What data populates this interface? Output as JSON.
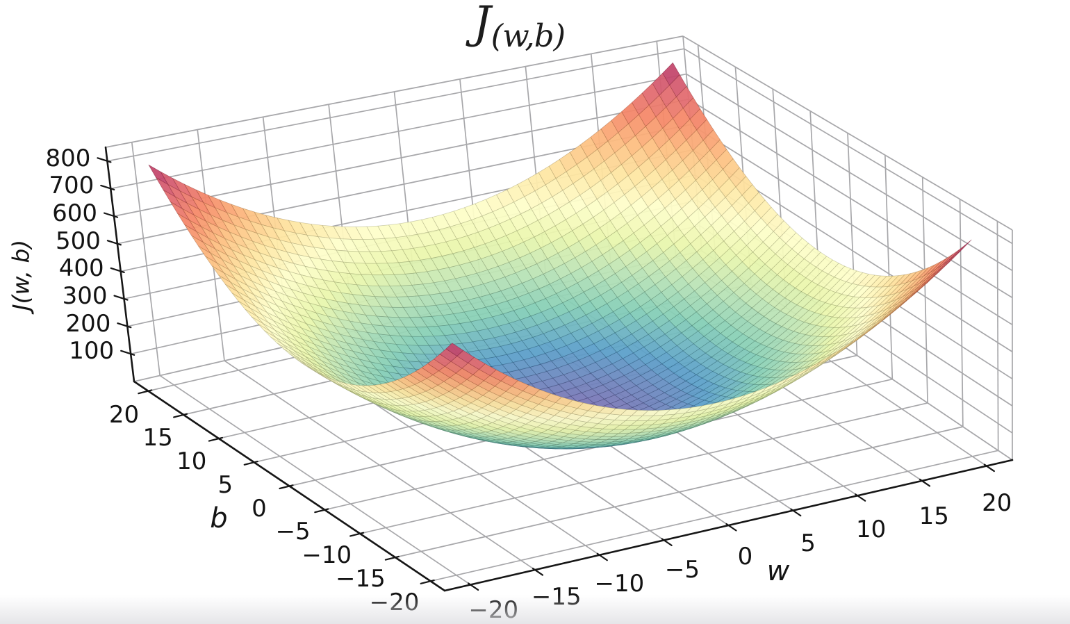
{
  "title": {
    "main": "J",
    "subscript": "(w,b)"
  },
  "chart_data": {
    "type": "surface",
    "description": "3D bowl-shaped cost surface of squared-error cost J over weight w and bias b",
    "expression_js": "w*w + b*b",
    "xlabel": "w",
    "ylabel": "b",
    "zlabel": "J(w, b)",
    "x_range": [
      -20,
      20
    ],
    "y_range": [
      -20,
      20
    ],
    "z_range": [
      0,
      800
    ],
    "axis_box_limits": {
      "xy": [
        -22,
        22
      ],
      "z": [
        0,
        850
      ]
    },
    "x_ticks": [
      -20,
      -15,
      -10,
      -5,
      0,
      5,
      10,
      15,
      20
    ],
    "y_ticks": [
      -20,
      -15,
      -10,
      -5,
      0,
      5,
      10,
      15,
      20
    ],
    "z_ticks": [
      100,
      200,
      300,
      400,
      500,
      600,
      700,
      800
    ],
    "corner_peak_value": 800,
    "minimum_value": 0,
    "minimum_at": {
      "w": 0,
      "b": 0
    },
    "mesh_segments": 48,
    "grid": true,
    "colormap": {
      "name": "Spectral_r",
      "reversed": true,
      "stops": [
        "#9e0142",
        "#d53e4f",
        "#f46d43",
        "#fdae61",
        "#fee08b",
        "#ffffbf",
        "#e6f598",
        "#abdda4",
        "#66c2a5",
        "#3288bd",
        "#5e4fa2"
      ],
      "value_min": 0,
      "value_max": 800
    },
    "colors": {
      "grid": "#a7a7aa",
      "axis": "#161616",
      "background": "#ffffff",
      "tick_label": "#131313"
    }
  }
}
